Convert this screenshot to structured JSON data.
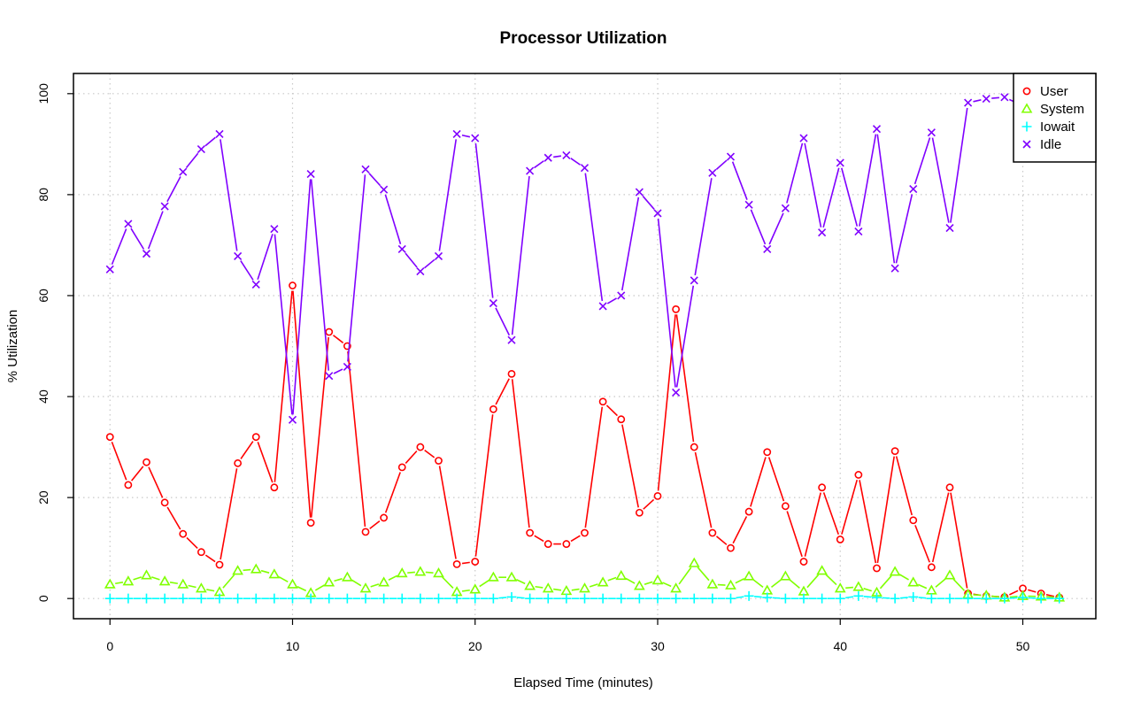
{
  "chart_data": {
    "type": "line",
    "title": "Processor Utilization",
    "xlabel": "Elapsed Time (minutes)",
    "ylabel": "% Utilization",
    "xlim": [
      -2,
      54
    ],
    "ylim": [
      -4,
      104
    ],
    "xticks": [
      0,
      10,
      20,
      30,
      40,
      50
    ],
    "yticks": [
      0,
      20,
      40,
      60,
      80,
      100
    ],
    "grid": true,
    "legend_position": "top-right",
    "x": [
      0,
      1,
      2,
      3,
      4,
      5,
      6,
      7,
      8,
      9,
      10,
      11,
      12,
      13,
      14,
      15,
      16,
      17,
      18,
      19,
      20,
      21,
      22,
      23,
      24,
      25,
      26,
      27,
      28,
      29,
      30,
      31,
      32,
      33,
      34,
      35,
      36,
      37,
      38,
      39,
      40,
      41,
      42,
      43,
      44,
      45,
      46,
      47,
      48,
      49,
      50,
      51,
      52
    ],
    "series": [
      {
        "name": "User",
        "color": "#ff0000",
        "marker": "circle",
        "values": [
          32,
          22.5,
          27,
          19,
          12.8,
          9.2,
          6.7,
          26.8,
          32,
          22,
          62,
          15,
          52.8,
          50,
          13.2,
          16,
          26,
          30,
          27.3,
          6.8,
          7.3,
          37.5,
          44.5,
          13,
          10.8,
          10.8,
          13,
          39,
          35.5,
          17,
          20.3,
          57.3,
          30,
          13,
          10,
          17.2,
          29,
          18.3,
          7.3,
          22,
          11.7,
          24.5,
          6,
          29.2,
          15.5,
          6.2,
          22,
          1,
          0.5,
          0.3,
          2,
          1,
          0.2
        ]
      },
      {
        "name": "System",
        "color": "#80ff00",
        "marker": "triangle",
        "values": [
          2.8,
          3.4,
          4.6,
          3.4,
          2.8,
          2,
          1.3,
          5.5,
          5.8,
          4.8,
          2.8,
          1.1,
          3.2,
          4.2,
          2,
          3.2,
          5,
          5.3,
          5,
          1.3,
          1.8,
          4.2,
          4.2,
          2.5,
          2,
          1.5,
          2,
          3.2,
          4.5,
          2.5,
          3.6,
          2,
          7,
          2.8,
          2.6,
          4.4,
          1.6,
          4.4,
          1.4,
          5.5,
          2,
          2.3,
          1.2,
          5.3,
          3.2,
          1.6,
          4.6,
          0.8,
          0.6,
          0.2,
          0.5,
          0.4,
          0.2
        ]
      },
      {
        "name": "Iowait",
        "color": "#00ffff",
        "marker": "plus",
        "values": [
          0,
          0,
          0,
          0,
          0,
          0,
          0,
          0,
          0,
          0,
          0,
          0,
          0,
          0,
          0,
          0,
          0,
          0,
          0,
          0,
          0,
          0,
          0.3,
          0,
          0,
          0,
          0,
          0,
          0,
          0,
          0,
          0,
          0,
          0,
          0,
          0.5,
          0.2,
          0,
          0,
          0,
          0,
          0.5,
          0.2,
          0,
          0.3,
          0,
          0,
          0,
          0,
          0,
          0.2,
          0,
          0
        ]
      },
      {
        "name": "Idle",
        "color": "#8000ff",
        "marker": "cross",
        "values": [
          65.2,
          74.2,
          68.3,
          77.7,
          84.5,
          89,
          92,
          67.8,
          62.2,
          73.2,
          35.4,
          84.1,
          44.1,
          45.9,
          85,
          81,
          69.2,
          64.8,
          67.8,
          92,
          91.2,
          58.5,
          51.2,
          84.7,
          87.3,
          87.8,
          85.3,
          57.9,
          60,
          80.5,
          76.3,
          40.8,
          63,
          84.3,
          87.5,
          78,
          69.2,
          77.3,
          91.2,
          72.5,
          86.3,
          72.7,
          93,
          65.4,
          81.1,
          92.3,
          73.4,
          98.2,
          99,
          99.3,
          97.6,
          98.6,
          99.6
        ]
      }
    ]
  }
}
